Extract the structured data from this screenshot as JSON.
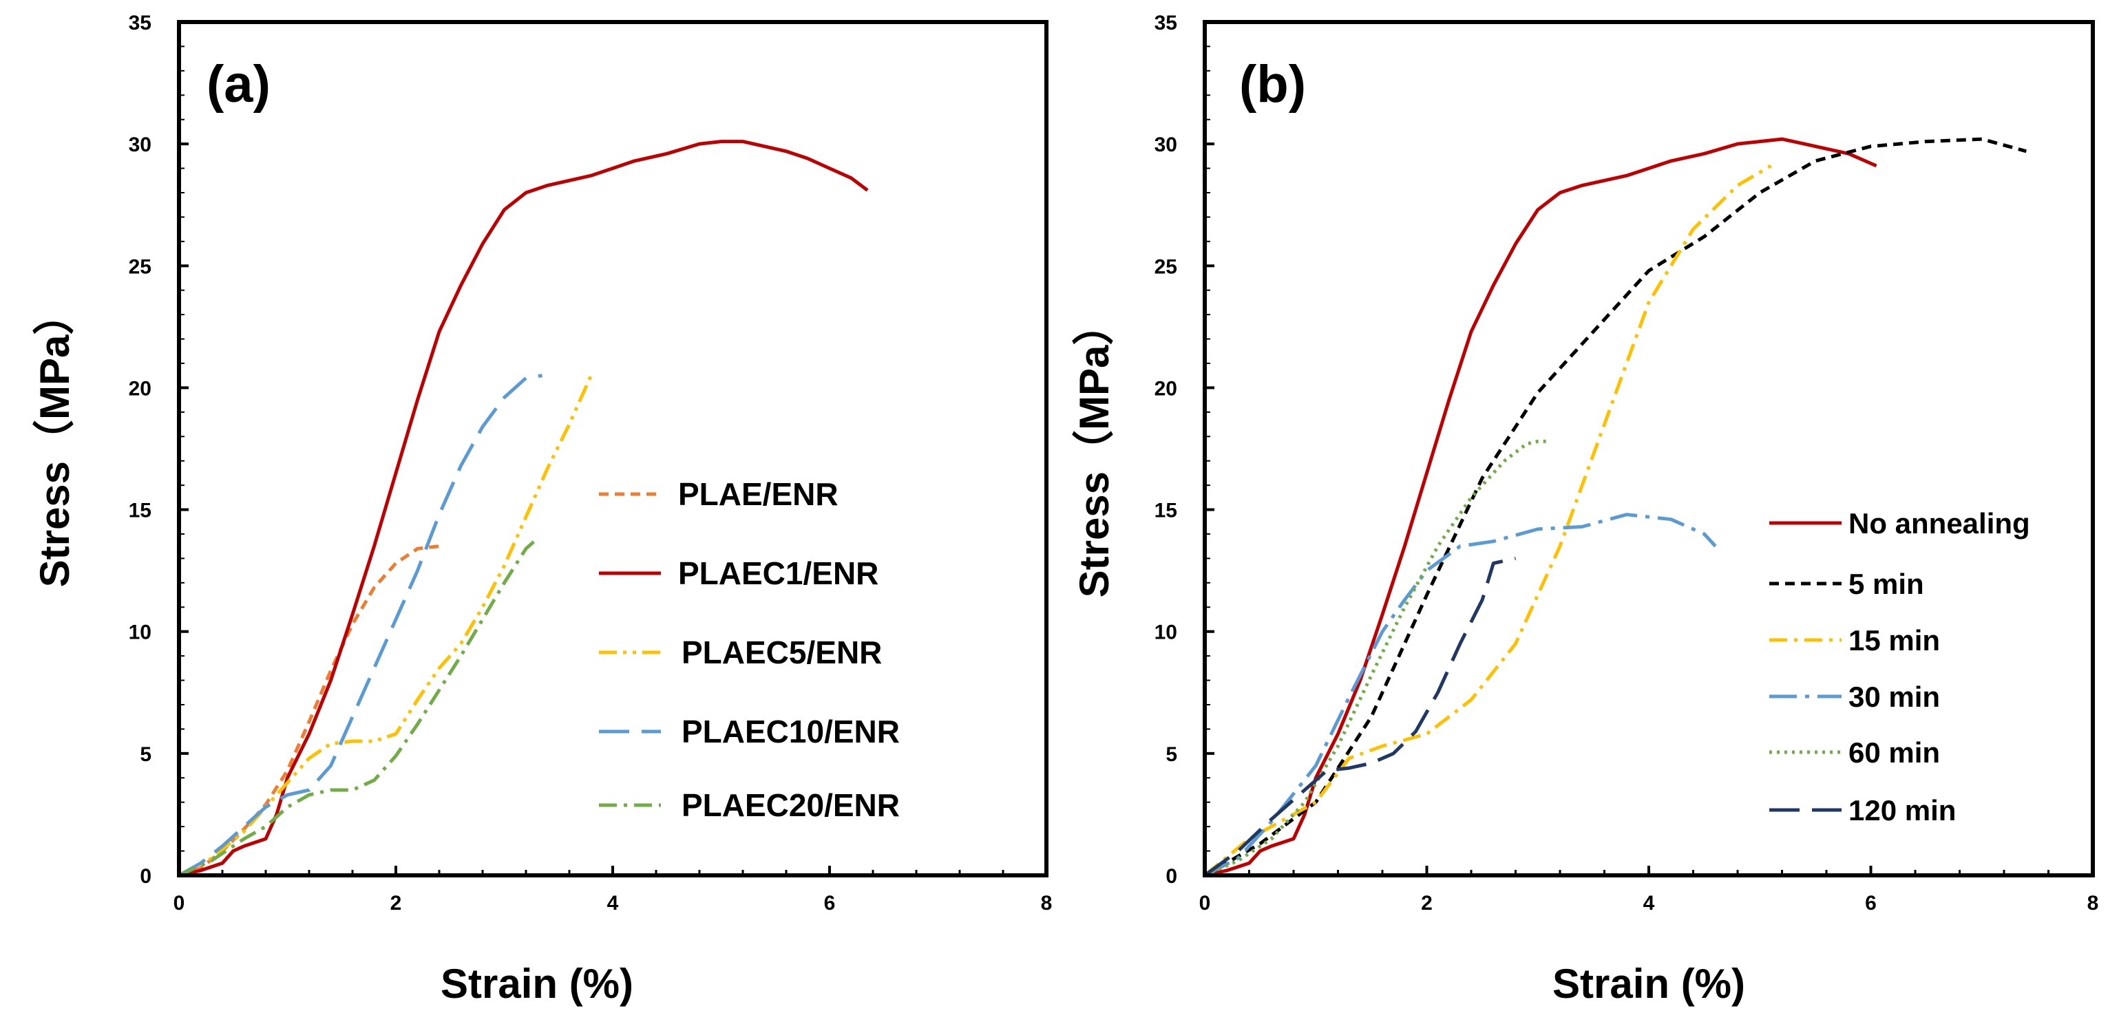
{
  "chart_data": [
    {
      "panel": "(a)",
      "type": "line",
      "xlabel": "Strain (%)",
      "ylabel": "Stress（MPa）",
      "xlim": [
        0,
        8
      ],
      "ylim": [
        0,
        35
      ],
      "xticks": [
        0,
        2,
        4,
        6,
        8
      ],
      "yticks": [
        0,
        5,
        10,
        15,
        20,
        25,
        30,
        35
      ],
      "grid": false,
      "legend_position": "right",
      "series": [
        {
          "name": "PLAE/ENR",
          "color": "#ED7D31",
          "dash": "short-dash",
          "x": [
            0,
            0.2,
            0.4,
            0.6,
            0.8,
            1.0,
            1.2,
            1.4,
            1.6,
            1.8,
            2.0,
            2.2,
            2.4
          ],
          "y": [
            0,
            0.3,
            1.0,
            1.9,
            2.9,
            4.3,
            6.3,
            8.4,
            10.3,
            11.8,
            12.8,
            13.4,
            13.5
          ]
        },
        {
          "name": "PLAEC1/ENR",
          "color": "#C00000",
          "dash": "solid",
          "x": [
            0,
            0.2,
            0.4,
            0.5,
            0.6,
            0.8,
            0.9,
            1.0,
            1.2,
            1.4,
            1.6,
            1.8,
            2.0,
            2.2,
            2.4,
            2.6,
            2.8,
            3.0,
            3.2,
            3.4,
            3.6,
            3.8,
            4.0,
            4.2,
            4.5,
            4.8,
            5.0,
            5.2,
            5.4,
            5.6,
            5.8,
            6.0,
            6.2,
            6.35
          ],
          "y": [
            0,
            0.2,
            0.5,
            1.0,
            1.2,
            1.5,
            2.5,
            4.0,
            5.8,
            8.0,
            10.7,
            13.5,
            16.5,
            19.5,
            22.3,
            24.2,
            25.9,
            27.3,
            28.0,
            28.3,
            28.5,
            28.7,
            29.0,
            29.3,
            29.6,
            30.0,
            30.1,
            30.1,
            29.9,
            29.7,
            29.4,
            29.0,
            28.6,
            28.1
          ]
        },
        {
          "name": "PLAEC5/ENR",
          "color": "#FFC000",
          "dash": "dash-dot-dot",
          "x": [
            0,
            0.3,
            0.6,
            0.8,
            1.0,
            1.2,
            1.4,
            1.6,
            1.8,
            2.0,
            2.2,
            2.4,
            2.6,
            2.8,
            3.0,
            3.2,
            3.4,
            3.6,
            3.8
          ],
          "y": [
            0,
            0.7,
            1.8,
            2.8,
            3.8,
            4.8,
            5.4,
            5.5,
            5.5,
            5.8,
            7.2,
            8.5,
            9.5,
            11.0,
            12.7,
            14.7,
            16.7,
            18.5,
            20.5
          ]
        },
        {
          "name": "PLAEC10/ENR",
          "color": "#5B9BD5",
          "dash": "long-dash",
          "x": [
            0,
            0.2,
            0.4,
            0.6,
            0.8,
            1.0,
            1.2,
            1.4,
            1.6,
            1.8,
            2.0,
            2.2,
            2.4,
            2.6,
            2.8,
            3.0,
            3.2,
            3.35
          ],
          "y": [
            0,
            0.5,
            1.2,
            2.0,
            2.8,
            3.3,
            3.5,
            4.5,
            6.5,
            8.5,
            10.5,
            12.5,
            14.8,
            16.8,
            18.4,
            19.6,
            20.4,
            20.5
          ]
        },
        {
          "name": "PLAEC20/ENR",
          "color": "#70AD47",
          "dash": "dash-dot",
          "x": [
            0,
            0.3,
            0.6,
            0.8,
            1.0,
            1.2,
            1.4,
            1.6,
            1.8,
            2.0,
            2.2,
            2.4,
            2.6,
            2.8,
            3.0,
            3.2,
            3.3
          ],
          "y": [
            0,
            0.6,
            1.5,
            2.0,
            2.8,
            3.3,
            3.5,
            3.5,
            3.9,
            4.9,
            6.2,
            7.6,
            9.0,
            10.5,
            12.0,
            13.4,
            13.8
          ]
        }
      ]
    },
    {
      "panel": "(b)",
      "type": "line",
      "xlabel": "Strain (%)",
      "ylabel": "Stress（MPa）",
      "xlim": [
        0,
        8
      ],
      "ylim": [
        0,
        35
      ],
      "xticks": [
        0,
        2,
        4,
        6,
        8
      ],
      "yticks": [
        0,
        5,
        10,
        15,
        20,
        25,
        30,
        35
      ],
      "grid": false,
      "legend_position": "right",
      "series": [
        {
          "name": "No annealing",
          "color": "#C00000",
          "dash": "solid",
          "x": [
            0,
            0.2,
            0.4,
            0.5,
            0.6,
            0.8,
            0.9,
            1.0,
            1.2,
            1.4,
            1.6,
            1.8,
            2.0,
            2.2,
            2.4,
            2.6,
            2.8,
            3.0,
            3.2,
            3.4,
            3.6,
            3.8,
            4.0,
            4.2,
            4.5,
            4.8,
            5.0,
            5.2,
            5.4,
            5.6,
            5.8,
            6.05
          ],
          "y": [
            0,
            0.2,
            0.5,
            1.0,
            1.2,
            1.5,
            2.5,
            4.0,
            5.8,
            8.0,
            10.7,
            13.5,
            16.5,
            19.5,
            22.3,
            24.2,
            25.9,
            27.3,
            28.0,
            28.3,
            28.5,
            28.7,
            29.0,
            29.3,
            29.6,
            30.0,
            30.1,
            30.2,
            30.0,
            29.8,
            29.6,
            29.1
          ]
        },
        {
          "name": "5 min",
          "color": "#000000",
          "dash": "short-dash",
          "x": [
            0,
            0.5,
            1.0,
            1.5,
            2.0,
            2.5,
            3.0,
            3.5,
            4.0,
            4.5,
            5.0,
            5.5,
            6.0,
            6.5,
            7.0,
            7.4
          ],
          "y": [
            0,
            1.3,
            3.0,
            6.5,
            11.5,
            16.3,
            19.8,
            22.3,
            24.8,
            26.2,
            28.0,
            29.3,
            29.9,
            30.1,
            30.2,
            29.7
          ]
        },
        {
          "name": "15 min",
          "color": "#FFC000",
          "dash": "dash-dot",
          "x": [
            0,
            0.4,
            0.8,
            1.0,
            1.3,
            1.6,
            2.0,
            2.4,
            2.8,
            3.2,
            3.6,
            4.0,
            4.4,
            4.8,
            5.1
          ],
          "y": [
            0,
            1.5,
            2.5,
            3.0,
            4.8,
            5.3,
            5.8,
            7.2,
            9.5,
            13.5,
            18.5,
            23.5,
            26.5,
            28.3,
            29.1
          ]
        },
        {
          "name": "30 min",
          "color": "#5B9BD5",
          "dash": "long-dash-dot",
          "x": [
            0,
            0.3,
            0.6,
            1.0,
            1.3,
            1.6,
            1.8,
            2.0,
            2.3,
            2.6,
            3.0,
            3.4,
            3.8,
            4.2,
            4.5,
            4.6
          ],
          "y": [
            0,
            0.7,
            2.2,
            4.5,
            7.3,
            10.0,
            11.3,
            12.5,
            13.5,
            13.7,
            14.2,
            14.3,
            14.8,
            14.6,
            14.0,
            13.5
          ]
        },
        {
          "name": "60 min",
          "color": "#70AD47",
          "dash": "dotted",
          "x": [
            0,
            0.3,
            0.6,
            0.9,
            1.2,
            1.5,
            1.8,
            2.1,
            2.4,
            2.7,
            2.9,
            3.0,
            3.1
          ],
          "y": [
            0,
            0.6,
            1.5,
            3.0,
            5.3,
            8.2,
            11.0,
            13.5,
            15.5,
            17.0,
            17.7,
            17.8,
            17.8
          ]
        },
        {
          "name": "120 min",
          "color": "#203864",
          "dash": "long-dash",
          "x": [
            0,
            0.3,
            0.6,
            0.9,
            1.1,
            1.3,
            1.5,
            1.7,
            1.9,
            2.1,
            2.3,
            2.5,
            2.6,
            2.8
          ],
          "y": [
            0,
            1.0,
            2.3,
            3.5,
            4.3,
            4.4,
            4.6,
            5.0,
            5.9,
            7.5,
            9.5,
            11.3,
            12.8,
            13.0
          ]
        }
      ]
    }
  ]
}
